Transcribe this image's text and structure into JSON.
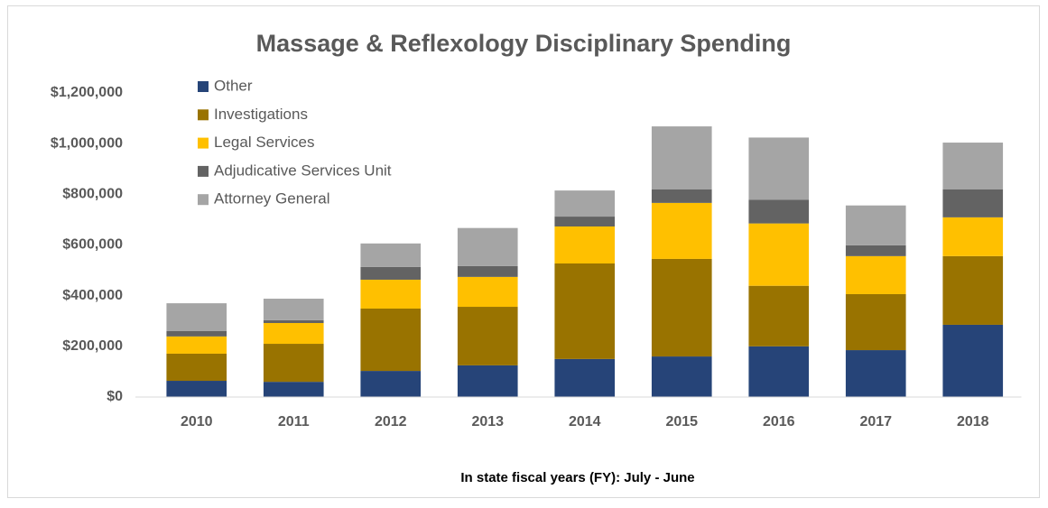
{
  "chart_data": {
    "type": "stacked_bar",
    "title": "Massage & Reflexology Disciplinary Spending",
    "x_label": "In state fiscal years (FY): July - June",
    "categories": [
      "2010",
      "2011",
      "2012",
      "2013",
      "2014",
      "2015",
      "2016",
      "2017",
      "2018"
    ],
    "series": [
      {
        "name": "Other",
        "color": "#264478",
        "values": [
          64000,
          60000,
          103000,
          125000,
          150000,
          160000,
          200000,
          185000,
          285000
        ]
      },
      {
        "name": "Investigations",
        "color": "#997300",
        "values": [
          107000,
          150000,
          246000,
          231000,
          377000,
          385000,
          239000,
          221000,
          271000
        ]
      },
      {
        "name": "Legal Services",
        "color": "#FFC000",
        "values": [
          68000,
          82000,
          114000,
          118000,
          146000,
          221000,
          246000,
          150000,
          153000
        ]
      },
      {
        "name": "Adjudicative Services Unit",
        "color": "#636363",
        "values": [
          21000,
          11000,
          50000,
          43000,
          39000,
          53000,
          93000,
          43000,
          110000
        ]
      },
      {
        "name": "Attorney General",
        "color": "#A5A5A5",
        "values": [
          110000,
          85000,
          93000,
          150000,
          103000,
          249000,
          246000,
          157000,
          185000
        ]
      }
    ],
    "ylim": [
      0,
      1200000
    ],
    "yticks": [
      {
        "value": 0,
        "label": "$0"
      },
      {
        "value": 200000,
        "label": "$200,000"
      },
      {
        "value": 400000,
        "label": "$400,000"
      },
      {
        "value": 600000,
        "label": "$600,000"
      },
      {
        "value": 800000,
        "label": "$800,000"
      },
      {
        "value": 1000000,
        "label": "$1,000,000"
      },
      {
        "value": 1200000,
        "label": "$1,200,000"
      }
    ],
    "legend": "top-left"
  }
}
